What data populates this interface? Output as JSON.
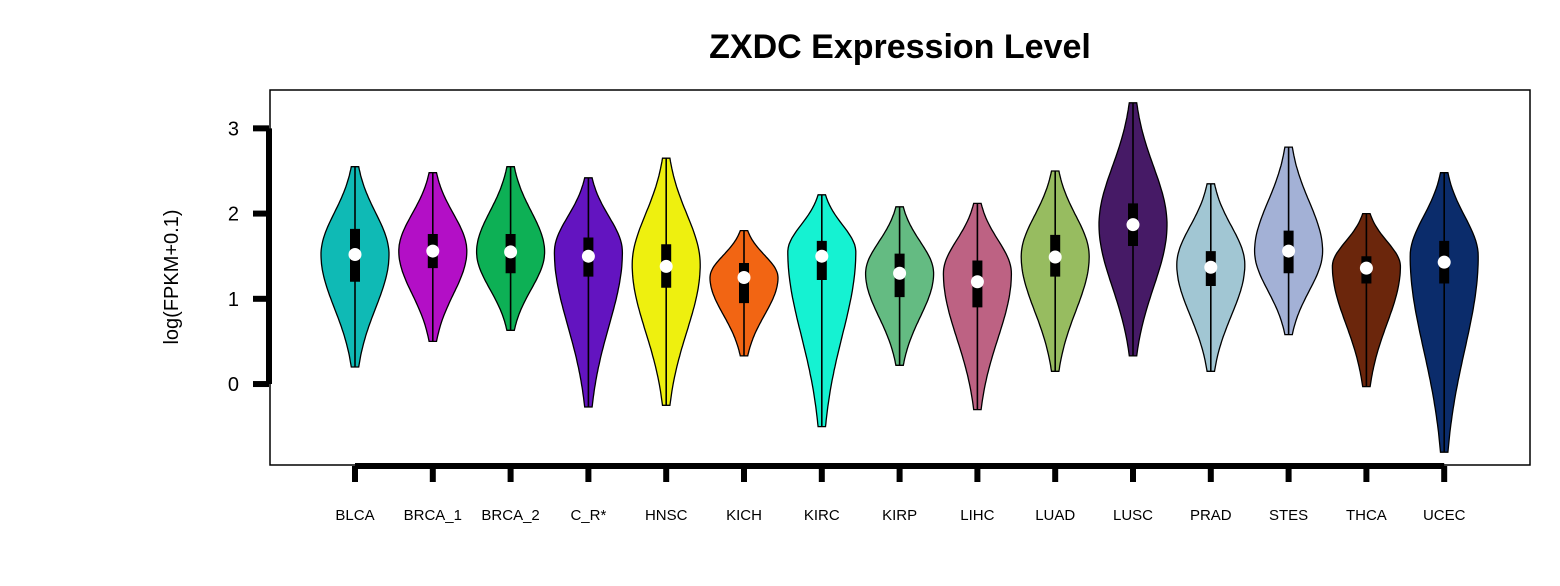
{
  "chart_data": {
    "type": "violin",
    "title": "ZXDC Expression Level",
    "ylabel": "log(FPKM+0.1)",
    "xlabel": "",
    "ylim": [
      -0.95,
      3.45
    ],
    "yticks": [
      0,
      1,
      2,
      3
    ],
    "grid": false,
    "legend": "none",
    "categories": [
      "BLCA",
      "BRCA_1",
      "BRCA_2",
      "C_R*",
      "HNSC",
      "KICH",
      "KIRC",
      "KIRP",
      "LIHC",
      "LUAD",
      "LUSC",
      "PRAD",
      "STES",
      "THCA",
      "UCEC"
    ],
    "series": [
      {
        "min": 0.2,
        "q1": 1.2,
        "median": 1.52,
        "q3": 1.82,
        "max": 2.55,
        "peak": 1.52,
        "color": "#0fbab5"
      },
      {
        "min": 0.5,
        "q1": 1.36,
        "median": 1.56,
        "q3": 1.76,
        "max": 2.48,
        "peak": 1.56,
        "color": "#b30fc6"
      },
      {
        "min": 0.63,
        "q1": 1.3,
        "median": 1.55,
        "q3": 1.76,
        "max": 2.55,
        "peak": 1.55,
        "color": "#0db055"
      },
      {
        "min": -0.27,
        "q1": 1.26,
        "median": 1.5,
        "q3": 1.72,
        "max": 2.42,
        "peak": 1.55,
        "color": "#6314c0"
      },
      {
        "min": -0.25,
        "q1": 1.13,
        "median": 1.38,
        "q3": 1.64,
        "max": 2.65,
        "peak": 1.4,
        "color": "#eef00f"
      },
      {
        "min": 0.33,
        "q1": 0.95,
        "median": 1.25,
        "q3": 1.42,
        "max": 1.8,
        "peak": 1.25,
        "color": "#f26513"
      },
      {
        "min": -0.5,
        "q1": 1.22,
        "median": 1.5,
        "q3": 1.68,
        "max": 2.22,
        "peak": 1.55,
        "color": "#15f2d2"
      },
      {
        "min": 0.22,
        "q1": 1.02,
        "median": 1.3,
        "q3": 1.53,
        "max": 2.08,
        "peak": 1.3,
        "color": "#64bb82"
      },
      {
        "min": -0.3,
        "q1": 0.9,
        "median": 1.2,
        "q3": 1.45,
        "max": 2.12,
        "peak": 1.3,
        "color": "#bd6283"
      },
      {
        "min": 0.15,
        "q1": 1.26,
        "median": 1.49,
        "q3": 1.75,
        "max": 2.5,
        "peak": 1.5,
        "color": "#97bc60"
      },
      {
        "min": 0.33,
        "q1": 1.62,
        "median": 1.87,
        "q3": 2.12,
        "max": 3.3,
        "peak": 1.87,
        "color": "#461a66"
      },
      {
        "min": 0.15,
        "q1": 1.15,
        "median": 1.37,
        "q3": 1.56,
        "max": 2.35,
        "peak": 1.4,
        "color": "#a1c6d3"
      },
      {
        "min": 0.58,
        "q1": 1.3,
        "median": 1.56,
        "q3": 1.8,
        "max": 2.78,
        "peak": 1.56,
        "color": "#a3b1d6"
      },
      {
        "min": -0.03,
        "q1": 1.18,
        "median": 1.36,
        "q3": 1.5,
        "max": 2.0,
        "peak": 1.38,
        "color": "#6b260c"
      },
      {
        "min": -0.8,
        "q1": 1.18,
        "median": 1.43,
        "q3": 1.68,
        "max": 2.48,
        "peak": 1.5,
        "color": "#0b2c6b"
      }
    ]
  }
}
